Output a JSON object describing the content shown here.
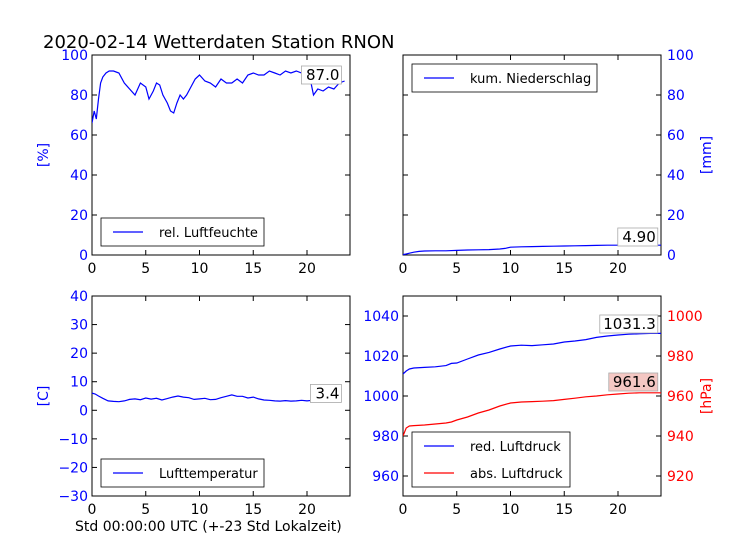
{
  "title": "2020-02-14 Wetterdaten Station RNON",
  "xlabel": "Std 00:00:00 UTC (+-23 Std Lokalzeit)",
  "colors": {
    "blue": "#0000ff",
    "red": "#ff0000",
    "label_red_bg": "#f4c7c3"
  },
  "chart_data": [
    {
      "type": "line",
      "id": "humidity",
      "ylabel": "[%]",
      "ylabel_color": "#0000ff",
      "xlim": [
        0,
        24
      ],
      "ylim": [
        0,
        100
      ],
      "xticks": [
        0,
        5,
        10,
        15,
        20
      ],
      "yticks": [
        0,
        20,
        40,
        60,
        80,
        100
      ],
      "yaxis_side": "left",
      "legend": {
        "position": "lower-left",
        "entries": [
          "rel. Luftfeuchte"
        ]
      },
      "last_value_label": "87.0",
      "series": [
        {
          "name": "rel. Luftfeuchte",
          "color": "#0000ff",
          "x": [
            0,
            0.2,
            0.4,
            0.6,
            0.8,
            1.0,
            1.3,
            1.6,
            2.0,
            2.5,
            3.0,
            3.5,
            4.0,
            4.5,
            5.0,
            5.3,
            5.7,
            6.0,
            6.3,
            6.6,
            7.0,
            7.3,
            7.6,
            7.9,
            8.2,
            8.5,
            8.8,
            9.2,
            9.6,
            10.0,
            10.5,
            11.0,
            11.5,
            12.0,
            12.5,
            13.0,
            13.5,
            14.0,
            14.5,
            15.0,
            15.5,
            16.0,
            16.5,
            17.0,
            17.5,
            18.0,
            18.5,
            19.0,
            19.5,
            20.0,
            20.3,
            20.6,
            21.0,
            21.5,
            22.0,
            22.5,
            23.0,
            23.5
          ],
          "y": [
            66,
            72,
            68,
            78,
            86,
            89,
            91,
            92,
            92,
            91,
            86,
            83,
            80,
            86,
            84,
            78,
            82,
            86,
            85,
            80,
            76,
            72,
            71,
            76,
            80,
            78,
            80,
            84,
            88,
            90,
            87,
            86,
            84,
            88,
            86,
            86,
            88,
            86,
            90,
            91,
            90,
            90,
            92,
            91,
            90,
            92,
            91,
            92,
            91,
            91,
            88,
            80,
            83,
            82,
            84,
            83,
            86,
            87
          ]
        }
      ]
    },
    {
      "type": "line",
      "id": "precipitation",
      "ylabel": "[mm]",
      "ylabel_color": "#0000ff",
      "xlim": [
        0,
        24
      ],
      "ylim": [
        0,
        100
      ],
      "xticks": [
        0,
        5,
        10,
        15,
        20
      ],
      "yticks": [
        0,
        20,
        40,
        60,
        80,
        100
      ],
      "yaxis_side": "right",
      "legend": {
        "position": "upper-left",
        "entries": [
          "kum. Niederschlag"
        ]
      },
      "last_value_label": "4.90",
      "series": [
        {
          "name": "kum. Niederschlag",
          "color": "#0000ff",
          "x": [
            0,
            0.3,
            0.6,
            1.0,
            1.5,
            2.0,
            3.0,
            4.0,
            5.0,
            6.0,
            7.0,
            8.0,
            9.0,
            9.5,
            10.0,
            11.0,
            12.0,
            13.0,
            14.0,
            15.0,
            16.0,
            17.0,
            18.0,
            19.0,
            20.0,
            21.0,
            22.0,
            23.0,
            24.0
          ],
          "y": [
            0.2,
            0.5,
            0.9,
            1.4,
            1.8,
            2.0,
            2.1,
            2.1,
            2.3,
            2.5,
            2.6,
            2.7,
            3.0,
            3.3,
            3.9,
            4.1,
            4.2,
            4.3,
            4.4,
            4.5,
            4.6,
            4.7,
            4.8,
            4.9,
            4.9,
            4.9,
            4.9,
            4.9,
            4.9
          ]
        }
      ]
    },
    {
      "type": "line",
      "id": "temperature",
      "ylabel": "[C]",
      "ylabel_color": "#0000ff",
      "xlim": [
        0,
        24
      ],
      "ylim": [
        -30,
        40
      ],
      "xticks": [
        0,
        5,
        10,
        15,
        20
      ],
      "yticks": [
        -30,
        -20,
        -10,
        0,
        10,
        20,
        30,
        40
      ],
      "yaxis_side": "left",
      "legend": {
        "position": "lower-left",
        "entries": [
          "Lufttemperatur"
        ]
      },
      "last_value_label": "3.4",
      "series": [
        {
          "name": "Lufttemperatur",
          "color": "#0000ff",
          "x": [
            0,
            0.3,
            0.6,
            1.0,
            1.5,
            2.0,
            2.5,
            3.0,
            3.5,
            4.0,
            4.5,
            5.0,
            5.5,
            6.0,
            6.5,
            7.0,
            7.5,
            8.0,
            8.5,
            9.0,
            9.5,
            10.0,
            10.5,
            11.0,
            11.5,
            12.0,
            12.5,
            13.0,
            13.5,
            14.0,
            14.5,
            15.0,
            15.5,
            16.0,
            16.5,
            17.0,
            17.5,
            18.0,
            18.5,
            19.0,
            19.5,
            20.0,
            20.5,
            21.0,
            21.5,
            22.0
          ],
          "y": [
            6.0,
            5.7,
            5.0,
            4.2,
            3.3,
            3.1,
            3.0,
            3.3,
            3.8,
            4.0,
            3.7,
            4.3,
            3.9,
            4.2,
            3.6,
            4.1,
            4.6,
            5.0,
            4.6,
            4.4,
            3.8,
            4.0,
            4.2,
            3.7,
            3.8,
            4.4,
            4.9,
            5.4,
            4.9,
            4.9,
            4.3,
            4.6,
            4.0,
            3.6,
            3.5,
            3.3,
            3.2,
            3.4,
            3.2,
            3.3,
            3.5,
            3.3,
            3.5,
            3.8,
            3.5,
            3.4
          ]
        }
      ]
    },
    {
      "type": "line",
      "id": "pressure",
      "ylabel": "[hPa]",
      "ylabel_color": "#ff0000",
      "xlim": [
        0,
        24
      ],
      "ylim": [
        950,
        1050
      ],
      "yticks": [
        960,
        980,
        1000,
        1020,
        1040
      ],
      "ylim_right": [
        910,
        1010
      ],
      "yticks_right": [
        920,
        940,
        960,
        980,
        1000
      ],
      "xticks": [
        0,
        5,
        10,
        15,
        20
      ],
      "legend": {
        "position": "lower-left",
        "entries": [
          "red. Luftdruck",
          "abs. Luftdruck"
        ]
      },
      "series": [
        {
          "name": "red. Luftdruck",
          "color": "#0000ff",
          "axis": "left",
          "last_value_label": "1031.3",
          "x": [
            0,
            0.3,
            0.6,
            1.0,
            2.0,
            3.0,
            4.0,
            4.5,
            5.0,
            6.0,
            7.0,
            8.0,
            9.0,
            10.0,
            11.0,
            12.0,
            13.0,
            14.0,
            15.0,
            16.0,
            17.0,
            18.0,
            19.0,
            20.0,
            21.0,
            22.0,
            23.0,
            24.0
          ],
          "y": [
            1011,
            1012.5,
            1013.5,
            1014,
            1014.3,
            1014.6,
            1015.2,
            1016.3,
            1016.5,
            1018.5,
            1020.5,
            1021.8,
            1023.5,
            1025,
            1025.4,
            1025.2,
            1025.6,
            1026,
            1027,
            1027.5,
            1028.2,
            1029.3,
            1030,
            1030.5,
            1030.9,
            1031.1,
            1031.3,
            1031.3
          ]
        },
        {
          "name": "abs. Luftdruck",
          "color": "#ff0000",
          "axis": "right",
          "last_value_label": "961.6",
          "x": [
            0,
            0.3,
            0.6,
            1.0,
            2.0,
            3.0,
            4.0,
            4.5,
            5.0,
            6.0,
            7.0,
            8.0,
            9.0,
            10.0,
            11.0,
            12.0,
            13.0,
            14.0,
            15.0,
            16.0,
            17.0,
            18.0,
            19.0,
            20.0,
            21.0,
            22.0,
            23.0,
            24.0
          ],
          "y": [
            940,
            944,
            945,
            945.2,
            945.5,
            946,
            946.5,
            947,
            948,
            949.5,
            951.5,
            953,
            955,
            956.5,
            957,
            957.2,
            957.4,
            957.7,
            958.3,
            958.9,
            959.6,
            960,
            960.6,
            961,
            961.4,
            961.6,
            961.6,
            961.6
          ]
        }
      ]
    }
  ]
}
